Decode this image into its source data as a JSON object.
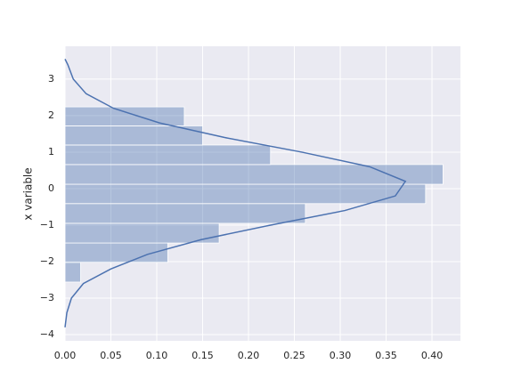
{
  "chart_data": {
    "type": "histogram",
    "orientation": "horizontal",
    "ylabel": "x variable",
    "bins": [
      -2.56,
      -2.02,
      -1.49,
      -0.95,
      -0.41,
      0.12,
      0.66,
      1.195,
      1.72,
      2.24
    ],
    "values": [
      0.017,
      0.112,
      0.168,
      0.262,
      0.393,
      0.412,
      0.224,
      0.15,
      0.13
    ],
    "color": "#4c72b0",
    "line_color": "#4c72b0",
    "kde": {
      "y": [
        -3.8,
        -3.4,
        -3.0,
        -2.6,
        -2.2,
        -1.8,
        -1.4,
        -1.0,
        -0.6,
        -0.2,
        0.2,
        0.6,
        1.0,
        1.4,
        1.8,
        2.2,
        2.6,
        3.0,
        3.4,
        3.55
      ],
      "values": [
        0.0,
        0.002,
        0.007,
        0.02,
        0.05,
        0.09,
        0.148,
        0.224,
        0.305,
        0.36,
        0.371,
        0.332,
        0.258,
        0.174,
        0.103,
        0.053,
        0.023,
        0.009,
        0.003,
        0.0
      ]
    },
    "xlim": [
      0,
      0.431
    ],
    "ylim": [
      -4.17,
      3.9
    ],
    "xticks": [
      {
        "value": 0,
        "label": "0.00"
      },
      {
        "value": 0.05,
        "label": "0.05"
      },
      {
        "value": 0.1,
        "label": "0.10"
      },
      {
        "value": 0.15,
        "label": "0.15"
      },
      {
        "value": 0.2,
        "label": "0.20"
      },
      {
        "value": 0.25,
        "label": "0.25"
      },
      {
        "value": 0.3,
        "label": "0.30"
      },
      {
        "value": 0.35,
        "label": "0.35"
      },
      {
        "value": 0.4,
        "label": "0.40"
      }
    ],
    "yticks": [
      {
        "value": -4,
        "label": "−4"
      },
      {
        "value": -3,
        "label": "−3"
      },
      {
        "value": -2,
        "label": "−2"
      },
      {
        "value": -1,
        "label": "−1"
      },
      0,
      1,
      2,
      3
    ],
    "grid": true
  }
}
